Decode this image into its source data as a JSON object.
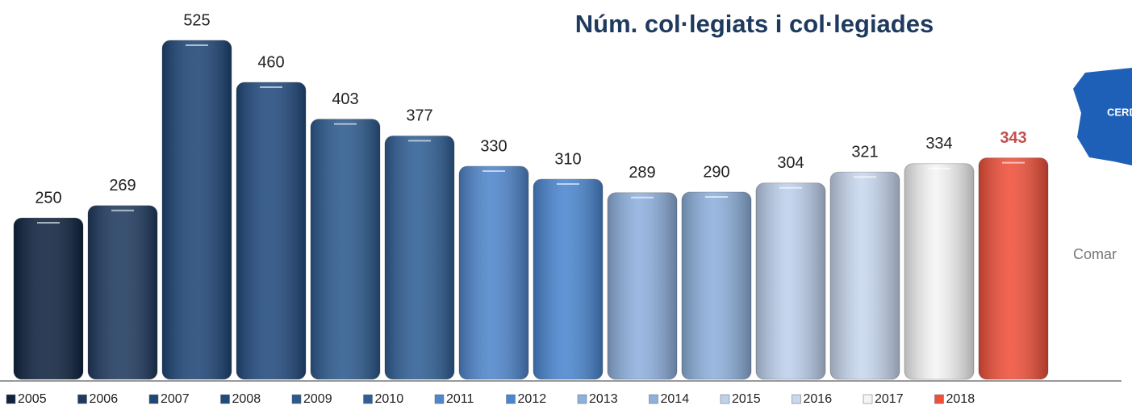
{
  "chart_data": {
    "type": "bar",
    "title": "Núm. col·legiats i col·legiades",
    "categories": [
      "2005",
      "2006",
      "2007",
      "2008",
      "2009",
      "2010",
      "2011",
      "2012",
      "2013",
      "2014",
      "2015",
      "2016",
      "2017",
      "2018"
    ],
    "values": [
      250,
      269,
      525,
      460,
      403,
      377,
      330,
      310,
      289,
      290,
      304,
      321,
      334,
      343
    ],
    "colors": [
      "#0f2340",
      "#1f3a5f",
      "#1e4677",
      "#214a7e",
      "#2c5a8e",
      "#2f5f95",
      "#4f86cc",
      "#4a86d0",
      "#8eb0de",
      "#8db0dc",
      "#bdd0ec",
      "#c8d8ef",
      "#f4f4f4",
      "#f0503a"
    ],
    "value_label_colors": [
      "#222",
      "#222",
      "#222",
      "#222",
      "#222",
      "#222",
      "#222",
      "#222",
      "#222",
      "#222",
      "#222",
      "#222",
      "#222",
      "#c0504d"
    ],
    "ylim": [
      0,
      587.5
    ],
    "legend": "bottom"
  },
  "side_image": {
    "labels": [
      "CERDA",
      "Comar"
    ]
  }
}
